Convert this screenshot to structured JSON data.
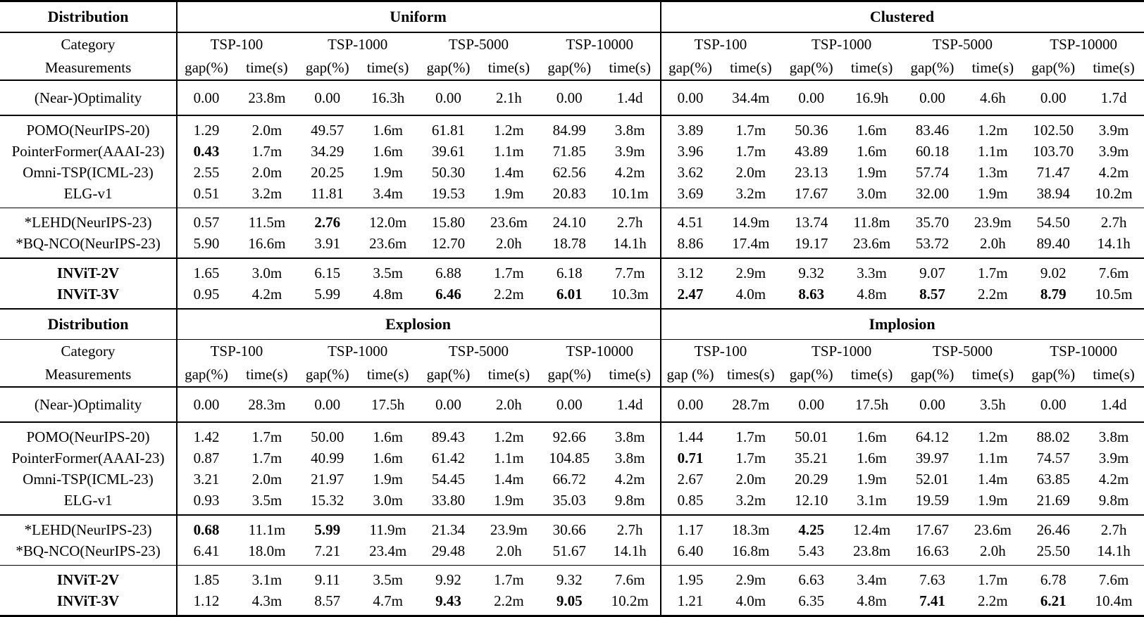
{
  "tables": [
    {
      "distribution_header": {
        "label": "Distribution",
        "sections": [
          "Uniform",
          "Clustered"
        ]
      },
      "category_header": {
        "line1": "Category",
        "line2": "Measurements"
      },
      "column_groups": [
        {
          "section": "Uniform",
          "cols": [
            {
              "name": "TSP-100",
              "subs": [
                "gap(%)",
                "time(s)"
              ]
            },
            {
              "name": "TSP-1000",
              "subs": [
                "gap(%)",
                "time(s)"
              ]
            },
            {
              "name": "TSP-5000",
              "subs": [
                "gap(%)",
                "time(s)"
              ]
            },
            {
              "name": "TSP-10000",
              "subs": [
                "gap(%)",
                "time(s)"
              ]
            }
          ]
        },
        {
          "section": "Clustered",
          "cols": [
            {
              "name": "TSP-100",
              "subs": [
                "gap(%)",
                "time(s)"
              ]
            },
            {
              "name": "TSP-1000",
              "subs": [
                "gap(%)",
                "time(s)"
              ]
            },
            {
              "name": "TSP-5000",
              "subs": [
                "gap(%)",
                "time(s)"
              ]
            },
            {
              "name": "TSP-10000",
              "subs": [
                "gap(%)",
                "time(s)"
              ]
            }
          ]
        }
      ],
      "optimality_row": {
        "label": "(Near-)Optimality",
        "cells": [
          "0.00",
          "23.8m",
          "0.00",
          "16.3h",
          "0.00",
          "2.1h",
          "0.00",
          "1.4d",
          "0.00",
          "34.4m",
          "0.00",
          "16.9h",
          "0.00",
          "4.6h",
          "0.00",
          "1.7d"
        ]
      },
      "row_groups": [
        {
          "rows": [
            {
              "label": "POMO(NeurIPS-20)",
              "cells": [
                "1.29",
                "2.0m",
                "49.57",
                "1.6m",
                "61.81",
                "1.2m",
                "84.99",
                "3.8m",
                "3.89",
                "1.7m",
                "50.36",
                "1.6m",
                "83.46",
                "1.2m",
                "102.50",
                "3.9m"
              ],
              "bold": []
            },
            {
              "label": "PointerFormer(AAAI-23)",
              "cells": [
                "0.43",
                "1.7m",
                "34.29",
                "1.6m",
                "39.61",
                "1.1m",
                "71.85",
                "3.9m",
                "3.96",
                "1.7m",
                "43.89",
                "1.6m",
                "60.18",
                "1.1m",
                "103.70",
                "3.9m"
              ],
              "bold": [
                0
              ]
            },
            {
              "label": "Omni-TSP(ICML-23)",
              "cells": [
                "2.55",
                "2.0m",
                "20.25",
                "1.9m",
                "50.30",
                "1.4m",
                "62.56",
                "4.2m",
                "3.62",
                "2.0m",
                "23.13",
                "1.9m",
                "57.74",
                "1.3m",
                "71.47",
                "4.2m"
              ],
              "bold": []
            },
            {
              "label": "ELG-v1",
              "cells": [
                "0.51",
                "3.2m",
                "11.81",
                "3.4m",
                "19.53",
                "1.9m",
                "20.83",
                "10.1m",
                "3.69",
                "3.2m",
                "17.67",
                "3.0m",
                "32.00",
                "1.9m",
                "38.94",
                "10.2m"
              ],
              "bold": []
            }
          ]
        },
        {
          "rows": [
            {
              "label": "*LEHD(NeurIPS-23)",
              "cells": [
                "0.57",
                "11.5m",
                "2.76",
                "12.0m",
                "15.80",
                "23.6m",
                "24.10",
                "2.7h",
                "4.51",
                "14.9m",
                "13.74",
                "11.8m",
                "35.70",
                "23.9m",
                "54.50",
                "2.7h"
              ],
              "bold": [
                2
              ]
            },
            {
              "label": "*BQ-NCO(NeurIPS-23)",
              "cells": [
                "5.90",
                "16.6m",
                "3.91",
                "23.6m",
                "12.70",
                "2.0h",
                "18.78",
                "14.1h",
                "8.86",
                "17.4m",
                "19.17",
                "23.6m",
                "53.72",
                "2.0h",
                "89.40",
                "14.1h"
              ],
              "bold": []
            }
          ]
        },
        {
          "rows": [
            {
              "label": "INViT-2V",
              "label_bold": true,
              "cells": [
                "1.65",
                "3.0m",
                "6.15",
                "3.5m",
                "6.88",
                "1.7m",
                "6.18",
                "7.7m",
                "3.12",
                "2.9m",
                "9.32",
                "3.3m",
                "9.07",
                "1.7m",
                "9.02",
                "7.6m"
              ],
              "bold": []
            },
            {
              "label": "INViT-3V",
              "label_bold": true,
              "cells": [
                "0.95",
                "4.2m",
                "5.99",
                "4.8m",
                "6.46",
                "2.2m",
                "6.01",
                "10.3m",
                "2.47",
                "4.0m",
                "8.63",
                "4.8m",
                "8.57",
                "2.2m",
                "8.79",
                "10.5m"
              ],
              "bold": [
                4,
                6,
                8,
                10,
                12,
                14
              ]
            }
          ]
        }
      ]
    },
    {
      "distribution_header": {
        "label": "Distribution",
        "sections": [
          "Explosion",
          "Implosion"
        ]
      },
      "category_header": {
        "line1": "Category",
        "line2": "Measurements"
      },
      "column_groups": [
        {
          "section": "Explosion",
          "cols": [
            {
              "name": "TSP-100",
              "subs": [
                "gap(%)",
                "time(s)"
              ]
            },
            {
              "name": "TSP-1000",
              "subs": [
                "gap(%)",
                "time(s)"
              ]
            },
            {
              "name": "TSP-5000",
              "subs": [
                "gap(%)",
                "time(s)"
              ]
            },
            {
              "name": "TSP-10000",
              "subs": [
                "gap(%)",
                "time(s)"
              ]
            }
          ]
        },
        {
          "section": "Implosion",
          "cols": [
            {
              "name": "TSP-100",
              "subs": [
                "gap (%)",
                "times(s)"
              ]
            },
            {
              "name": "TSP-1000",
              "subs": [
                "gap(%)",
                "time(s)"
              ]
            },
            {
              "name": "TSP-5000",
              "subs": [
                "gap(%)",
                "time(s)"
              ]
            },
            {
              "name": "TSP-10000",
              "subs": [
                "gap(%)",
                "time(s)"
              ]
            }
          ]
        }
      ],
      "optimality_row": {
        "label": "(Near-)Optimality",
        "cells": [
          "0.00",
          "28.3m",
          "0.00",
          "17.5h",
          "0.00",
          "2.0h",
          "0.00",
          "1.4d",
          "0.00",
          "28.7m",
          "0.00",
          "17.5h",
          "0.00",
          "3.5h",
          "0.00",
          "1.4d"
        ]
      },
      "row_groups": [
        {
          "rows": [
            {
              "label": "POMO(NeurIPS-20)",
              "cells": [
                "1.42",
                "1.7m",
                "50.00",
                "1.6m",
                "89.43",
                "1.2m",
                "92.66",
                "3.8m",
                "1.44",
                "1.7m",
                "50.01",
                "1.6m",
                "64.12",
                "1.2m",
                "88.02",
                "3.8m"
              ],
              "bold": []
            },
            {
              "label": "PointerFormer(AAAI-23)",
              "cells": [
                "0.87",
                "1.7m",
                "40.99",
                "1.6m",
                "61.42",
                "1.1m",
                "104.85",
                "3.8m",
                "0.71",
                "1.7m",
                "35.21",
                "1.6m",
                "39.97",
                "1.1m",
                "74.57",
                "3.9m"
              ],
              "bold": [
                8
              ]
            },
            {
              "label": "Omni-TSP(ICML-23)",
              "cells": [
                "3.21",
                "2.0m",
                "21.97",
                "1.9m",
                "54.45",
                "1.4m",
                "66.72",
                "4.2m",
                "2.67",
                "2.0m",
                "20.29",
                "1.9m",
                "52.01",
                "1.4m",
                "63.85",
                "4.2m"
              ],
              "bold": []
            },
            {
              "label": "ELG-v1",
              "cells": [
                "0.93",
                "3.5m",
                "15.32",
                "3.0m",
                "33.80",
                "1.9m",
                "35.03",
                "9.8m",
                "0.85",
                "3.2m",
                "12.10",
                "3.1m",
                "19.59",
                "1.9m",
                "21.69",
                "9.8m"
              ],
              "bold": []
            }
          ]
        },
        {
          "rows": [
            {
              "label": "*LEHD(NeurIPS-23)",
              "cells": [
                "0.68",
                "11.1m",
                "5.99",
                "11.9m",
                "21.34",
                "23.9m",
                "30.66",
                "2.7h",
                "1.17",
                "18.3m",
                "4.25",
                "12.4m",
                "17.67",
                "23.6m",
                "26.46",
                "2.7h"
              ],
              "bold": [
                0,
                2,
                10
              ]
            },
            {
              "label": "*BQ-NCO(NeurIPS-23)",
              "cells": [
                "6.41",
                "18.0m",
                "7.21",
                "23.4m",
                "29.48",
                "2.0h",
                "51.67",
                "14.1h",
                "6.40",
                "16.8m",
                "5.43",
                "23.8m",
                "16.63",
                "2.0h",
                "25.50",
                "14.1h"
              ],
              "bold": []
            }
          ]
        },
        {
          "rows": [
            {
              "label": "INViT-2V",
              "label_bold": true,
              "cells": [
                "1.85",
                "3.1m",
                "9.11",
                "3.5m",
                "9.92",
                "1.7m",
                "9.32",
                "7.6m",
                "1.95",
                "2.9m",
                "6.63",
                "3.4m",
                "7.63",
                "1.7m",
                "6.78",
                "7.6m"
              ],
              "bold": []
            },
            {
              "label": "INViT-3V",
              "label_bold": true,
              "cells": [
                "1.12",
                "4.3m",
                "8.57",
                "4.7m",
                "9.43",
                "2.2m",
                "9.05",
                "10.2m",
                "1.21",
                "4.0m",
                "6.35",
                "4.8m",
                "7.41",
                "2.2m",
                "6.21",
                "10.4m"
              ],
              "bold": [
                4,
                6,
                12,
                14
              ]
            }
          ]
        }
      ]
    }
  ]
}
